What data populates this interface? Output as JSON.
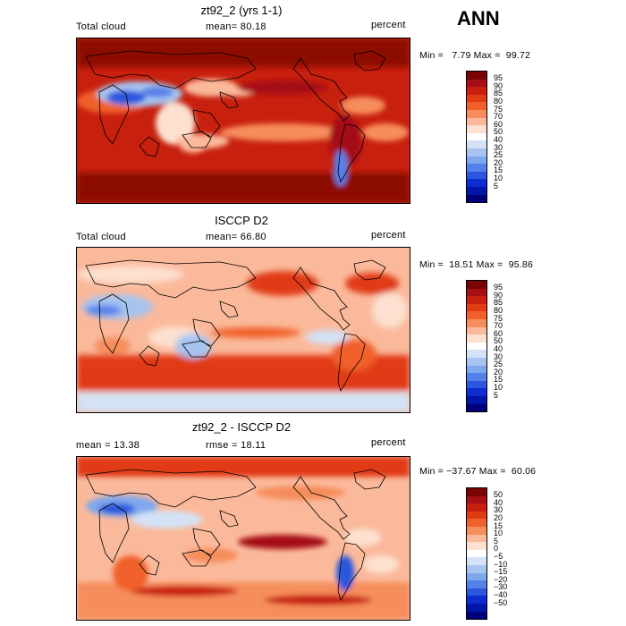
{
  "season": "ANN",
  "panels": [
    {
      "title": "zt92_2 (yrs 1-1)",
      "left_label": "Total cloud",
      "center_label": "mean=  80.18",
      "right_label": "percent",
      "min_max": "Min =   7.79 Max =  99.72",
      "colorbar": {
        "labels": [
          "95",
          "90",
          "85",
          "80",
          "75",
          "70",
          "60",
          "50",
          "40",
          "30",
          "25",
          "20",
          "15",
          "10",
          "5"
        ],
        "colors": [
          "#7a0403",
          "#a50f15",
          "#c8200e",
          "#e03b13",
          "#f0602a",
          "#f68d5c",
          "#fbb99b",
          "#fde0cf",
          "#ffffff",
          "#d3e2f5",
          "#a6c4ef",
          "#7ea7ec",
          "#5480ea",
          "#2a57de",
          "#0d2dd0",
          "#0016a8",
          "#00007a"
        ]
      }
    },
    {
      "title": "ISCCP D2",
      "left_label": "Total cloud",
      "center_label": "mean=  66.80",
      "right_label": "percent",
      "min_max": "Min =  18.51 Max =  95.86",
      "colorbar": {
        "labels": [
          "95",
          "90",
          "85",
          "80",
          "75",
          "70",
          "60",
          "50",
          "40",
          "30",
          "25",
          "20",
          "15",
          "10",
          "5"
        ],
        "colors": [
          "#7a0403",
          "#a50f15",
          "#c8200e",
          "#e03b13",
          "#f0602a",
          "#f68d5c",
          "#fbb99b",
          "#fde0cf",
          "#ffffff",
          "#d3e2f5",
          "#a6c4ef",
          "#7ea7ec",
          "#5480ea",
          "#2a57de",
          "#0d2dd0",
          "#0016a8",
          "#00007a"
        ]
      }
    },
    {
      "title": "zt92_2 - ISCCP D2",
      "left_label": "mean =  13.38",
      "center_label": "rmse =  18.11",
      "right_label": "percent",
      "min_max": "Min = −37.67 Max =  60.06",
      "colorbar": {
        "labels": [
          "50",
          "40",
          "30",
          "20",
          "15",
          "10",
          "5",
          "0",
          "−5",
          "−10",
          "−15",
          "−20",
          "−30",
          "−40",
          "−50"
        ],
        "colors": [
          "#7a0403",
          "#a50f15",
          "#c8200e",
          "#e03b13",
          "#f0602a",
          "#f68d5c",
          "#fbb99b",
          "#fde0cf",
          "#ffffff",
          "#d3e2f5",
          "#a6c4ef",
          "#7ea7ec",
          "#5480ea",
          "#2a57de",
          "#0d2dd0",
          "#0016a8",
          "#00007a"
        ]
      }
    }
  ]
}
